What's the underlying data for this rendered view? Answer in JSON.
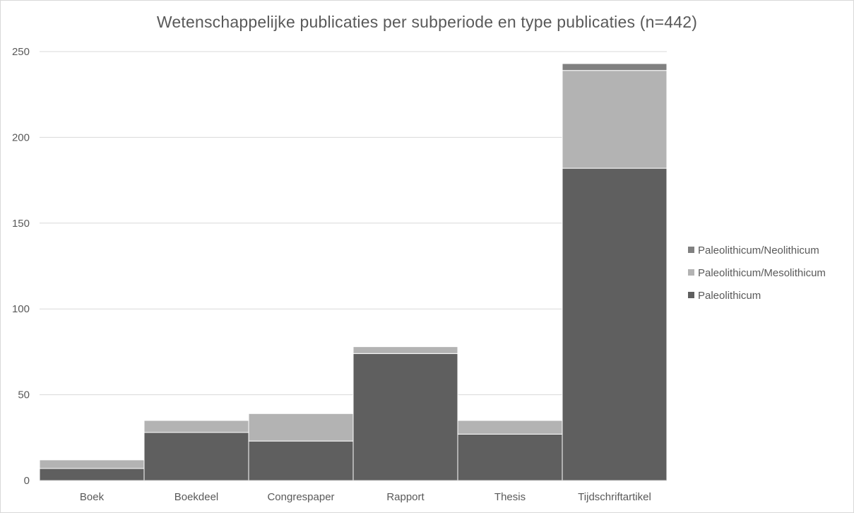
{
  "chart_data": {
    "type": "bar",
    "stacked": true,
    "title": "Wetenschappelijke publicaties per subperiode en type publicaties (n=442)",
    "xlabel": "",
    "ylabel": "",
    "ylim": [
      0,
      250
    ],
    "yticks": [
      0,
      50,
      100,
      150,
      200,
      250
    ],
    "grid": true,
    "legend_position": "right",
    "categories": [
      "Boek",
      "Boekdeel",
      "Congrespaper",
      "Rapport",
      "Thesis",
      "Tijdschriftartikel"
    ],
    "series": [
      {
        "name": "Paleolithicum",
        "color": "#5f5f5f",
        "values": [
          7,
          28,
          23,
          74,
          27,
          182
        ]
      },
      {
        "name": "Paleolithicum/Mesolithicum",
        "color": "#b3b3b3",
        "values": [
          5,
          7,
          16,
          4,
          8,
          57
        ]
      },
      {
        "name": "Paleolithicum/Neolithicum",
        "color": "#808080",
        "values": [
          0,
          0,
          0,
          0,
          0,
          4
        ]
      }
    ],
    "legend_order": [
      "Paleolithicum/Neolithicum",
      "Paleolithicum/Mesolithicum",
      "Paleolithicum"
    ]
  }
}
